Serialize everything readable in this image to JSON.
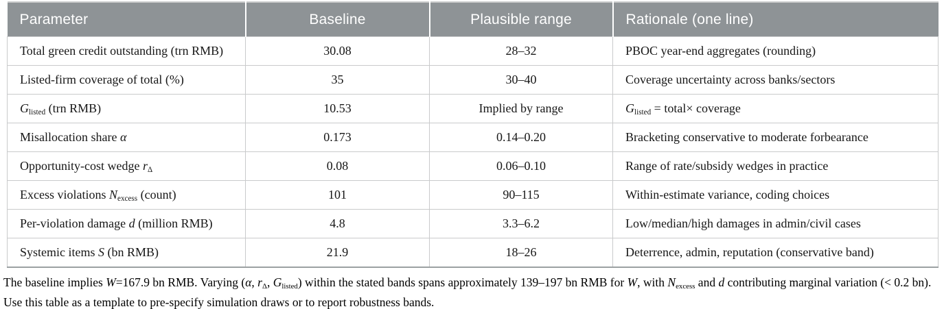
{
  "colors": {
    "header_bg": "#8e9396",
    "header_text": "#ffffff",
    "grid_line": "#c9cacb",
    "table_bottom_line": "#9ba0a2",
    "body_text": "#161616"
  },
  "table": {
    "headers": [
      "Parameter",
      "Baseline",
      "Plausible range",
      "Rationale (one line)"
    ],
    "rows": [
      [
        [
          {
            "t": "Total green credit outstanding (trn RMB)"
          }
        ],
        [
          {
            "t": "30.08"
          }
        ],
        [
          {
            "t": "28–32"
          }
        ],
        [
          {
            "t": "PBOC year-end aggregates (rounding)"
          }
        ]
      ],
      [
        [
          {
            "t": "Listed-firm coverage of total (%)"
          }
        ],
        [
          {
            "t": "35"
          }
        ],
        [
          {
            "t": "30–40"
          }
        ],
        [
          {
            "t": "Coverage uncertainty across banks/sectors"
          }
        ]
      ],
      [
        [
          {
            "t": "G",
            "i": true
          },
          {
            "t": "listed",
            "sub": true
          },
          {
            "t": " (trn RMB)"
          }
        ],
        [
          {
            "t": "10.53"
          }
        ],
        [
          {
            "t": "Implied by range"
          }
        ],
        [
          {
            "t": "G",
            "i": true
          },
          {
            "t": "listed",
            "sub": true
          },
          {
            "t": " = total× coverage"
          }
        ]
      ],
      [
        [
          {
            "t": "Misallocation share "
          },
          {
            "t": "α",
            "i": true
          }
        ],
        [
          {
            "t": "0.173"
          }
        ],
        [
          {
            "t": "0.14–0.20"
          }
        ],
        [
          {
            "t": "Bracketing conservative to moderate forbearance"
          }
        ]
      ],
      [
        [
          {
            "t": "Opportunity-cost wedge "
          },
          {
            "t": "r",
            "i": true
          },
          {
            "t": "Δ",
            "sub": true
          }
        ],
        [
          {
            "t": "0.08"
          }
        ],
        [
          {
            "t": "0.06–0.10"
          }
        ],
        [
          {
            "t": "Range of rate/subsidy wedges in practice"
          }
        ]
      ],
      [
        [
          {
            "t": "Excess violations "
          },
          {
            "t": "N",
            "i": true
          },
          {
            "t": "excess",
            "sub": true
          },
          {
            "t": " (count)"
          }
        ],
        [
          {
            "t": "101"
          }
        ],
        [
          {
            "t": "90–115"
          }
        ],
        [
          {
            "t": "Within-estimate variance, coding choices"
          }
        ]
      ],
      [
        [
          {
            "t": "Per-violation damage "
          },
          {
            "t": "d",
            "i": true
          },
          {
            "t": " (million RMB)"
          }
        ],
        [
          {
            "t": "4.8"
          }
        ],
        [
          {
            "t": "3.3–6.2"
          }
        ],
        [
          {
            "t": "Low/median/high damages in admin/civil cases"
          }
        ]
      ],
      [
        [
          {
            "t": "Systemic items "
          },
          {
            "t": "S",
            "i": true
          },
          {
            "t": " (bn RMB)"
          }
        ],
        [
          {
            "t": "21.9"
          }
        ],
        [
          {
            "t": "18–26"
          }
        ],
        [
          {
            "t": "Deterrence, admin, reputation (conservative band)"
          }
        ]
      ]
    ]
  },
  "footnote": {
    "segments": [
      {
        "t": "The baseline implies "
      },
      {
        "t": "W",
        "i": true
      },
      {
        "t": "=167.9 bn RMB. Varying ("
      },
      {
        "t": "α",
        "i": true
      },
      {
        "t": ", "
      },
      {
        "t": "r",
        "i": true
      },
      {
        "t": "Δ",
        "sub": true
      },
      {
        "t": ", "
      },
      {
        "t": "G",
        "i": true
      },
      {
        "t": "listed",
        "sub": true
      },
      {
        "t": ") within the stated bands spans approximately 139–197 bn RMB for "
      },
      {
        "t": "W",
        "i": true
      },
      {
        "t": ", with "
      },
      {
        "t": "N",
        "i": true
      },
      {
        "t": "excess",
        "sub": true
      },
      {
        "t": " and "
      },
      {
        "t": "d",
        "i": true
      },
      {
        "t": " contributing marginal variation (< 0.2 bn). Use this table as a template to pre-specify simulation draws or to report robustness bands."
      }
    ]
  }
}
